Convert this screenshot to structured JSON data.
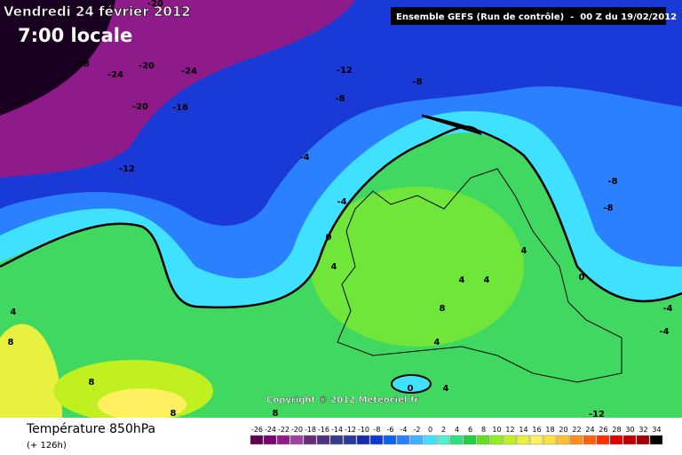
{
  "header": {
    "date": "Vendredi 24 février 2012",
    "time": "7:00 locale",
    "run": "Ensemble GEFS (Run de contrôle)  -  00 Z du 19/02/2012"
  },
  "map": {
    "copyright": "Copyright © 2012 Meteociel.fr",
    "contour_labels": [
      -28,
      -24,
      -20,
      -20,
      -24,
      -20,
      -16,
      -12,
      -8,
      -8,
      -12,
      -4,
      -4,
      0,
      4,
      -8,
      -8,
      4,
      4,
      4,
      0,
      -4,
      -4,
      4,
      8,
      8,
      4,
      0,
      4,
      8,
      8,
      8,
      -12
    ]
  },
  "footer": {
    "title": "Température 850hPa",
    "lead": "(+ 126h)"
  },
  "legend": {
    "ticks": [
      -26,
      -24,
      -22,
      -20,
      -18,
      -16,
      -14,
      -12,
      -10,
      -8,
      -6,
      -4,
      -2,
      0,
      2,
      4,
      6,
      8,
      10,
      12,
      14,
      16,
      18,
      20,
      22,
      24,
      26,
      28,
      30,
      32,
      34
    ],
    "colors": [
      "#5a0050",
      "#7a0070",
      "#8f1a8a",
      "#a040a0",
      "#6a2a7a",
      "#503080",
      "#3a3a8a",
      "#2a3a9a",
      "#1a2aaa",
      "#0a3ad0",
      "#1060f0",
      "#2a80ff",
      "#40b0ff",
      "#40e0ff",
      "#50f0d0",
      "#30e080",
      "#20d040",
      "#60e020",
      "#90f020",
      "#c0f020",
      "#e8f040",
      "#fff060",
      "#ffe040",
      "#ffc030",
      "#ff9020",
      "#ff6010",
      "#ff3000",
      "#e00000",
      "#c00000",
      "#a00000",
      "#000000"
    ]
  }
}
